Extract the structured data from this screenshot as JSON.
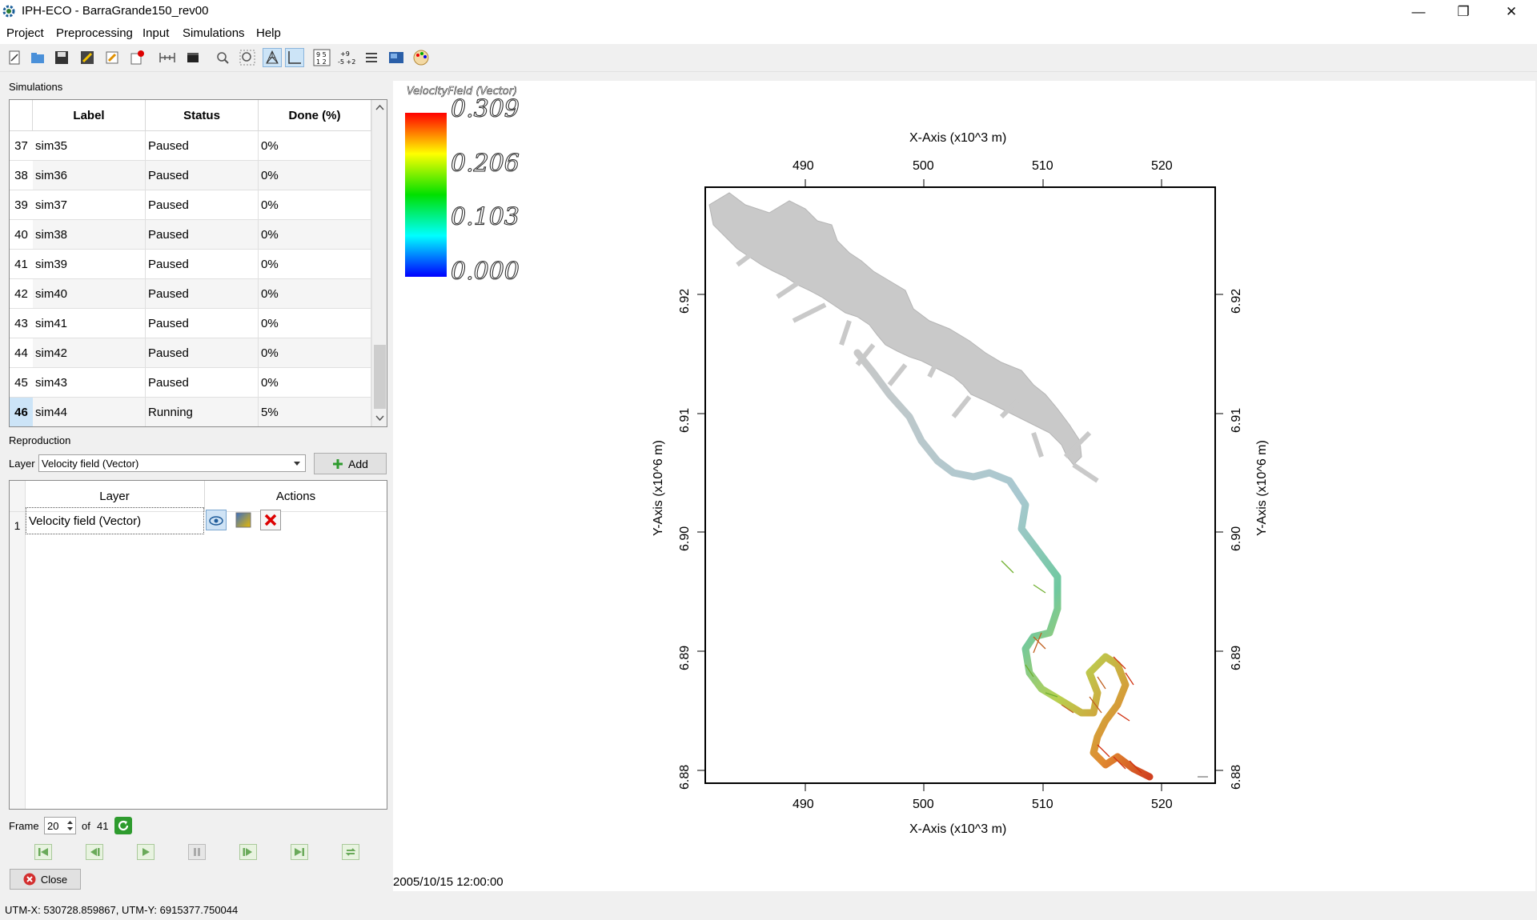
{
  "window": {
    "title": "IPH-ECO - BarraGrande150_rev00",
    "controls": {
      "minimize": "—",
      "restore": "❐",
      "close": "✕"
    }
  },
  "menu": [
    "Project",
    "Preprocessing",
    "Input",
    "Simulations",
    "Help"
  ],
  "toolbar_icons": [
    "new-project-icon",
    "open-project-icon",
    "save-icon",
    "edit-project-icon",
    "edit-icon",
    "notification-icon",
    "grid-icon",
    "video-icon",
    "zoom-icon",
    "zoom-extent-icon",
    "mesh-icon",
    "axes-icon",
    "numbers-icon",
    "ruler-icon",
    "list-icon",
    "map-icon",
    "palette-icon"
  ],
  "simulations": {
    "section_label": "Simulations",
    "columns": [
      "Label",
      "Status",
      "Done (%)"
    ],
    "rows": [
      {
        "num": "37",
        "label": "sim35",
        "status": "Paused",
        "done": "0%"
      },
      {
        "num": "38",
        "label": "sim36",
        "status": "Paused",
        "done": "0%"
      },
      {
        "num": "39",
        "label": "sim37",
        "status": "Paused",
        "done": "0%"
      },
      {
        "num": "40",
        "label": "sim38",
        "status": "Paused",
        "done": "0%"
      },
      {
        "num": "41",
        "label": "sim39",
        "status": "Paused",
        "done": "0%"
      },
      {
        "num": "42",
        "label": "sim40",
        "status": "Paused",
        "done": "0%"
      },
      {
        "num": "43",
        "label": "sim41",
        "status": "Paused",
        "done": "0%"
      },
      {
        "num": "44",
        "label": "sim42",
        "status": "Paused",
        "done": "0%"
      },
      {
        "num": "45",
        "label": "sim43",
        "status": "Paused",
        "done": "0%"
      },
      {
        "num": "46",
        "label": "sim44",
        "status": "Running",
        "done": "5%"
      }
    ],
    "selected_row": "46"
  },
  "reproduction": {
    "section_label": "Reproduction",
    "layer_label": "Layer",
    "layer_value": "Velocity field (Vector)",
    "add_label": "Add",
    "table_columns": [
      "Layer",
      "Actions"
    ],
    "layers": [
      {
        "num": "1",
        "name": "Velocity field (Vector)"
      }
    ],
    "frame_label": "Frame",
    "frame_value": "20",
    "frame_of": "of",
    "frame_total": "41",
    "close_label": "Close"
  },
  "plot": {
    "legend_title": "VelocityField (Vector)",
    "legend_values": [
      "0.309",
      "0.206",
      "0.103",
      "0.000"
    ],
    "x_axis_label": "X-Axis (x10^3 m)",
    "y_axis_label": "Y-Axis (x10^6 m)",
    "x_ticks": [
      "490",
      "500",
      "510",
      "520"
    ],
    "y_ticks": [
      "6.92",
      "6.91",
      "6.90",
      "6.89",
      "6.88"
    ],
    "timestamp": "2005/10/15 12:00:00",
    "colors": {
      "max": "#ff0000",
      "mid_high": "#ffff00",
      "mid": "#00e000",
      "mid_low": "#00ffff",
      "min": "#0000ff"
    }
  },
  "status": {
    "coords": "UTM-X: 530728.859867, UTM-Y: 6915377.750044"
  }
}
